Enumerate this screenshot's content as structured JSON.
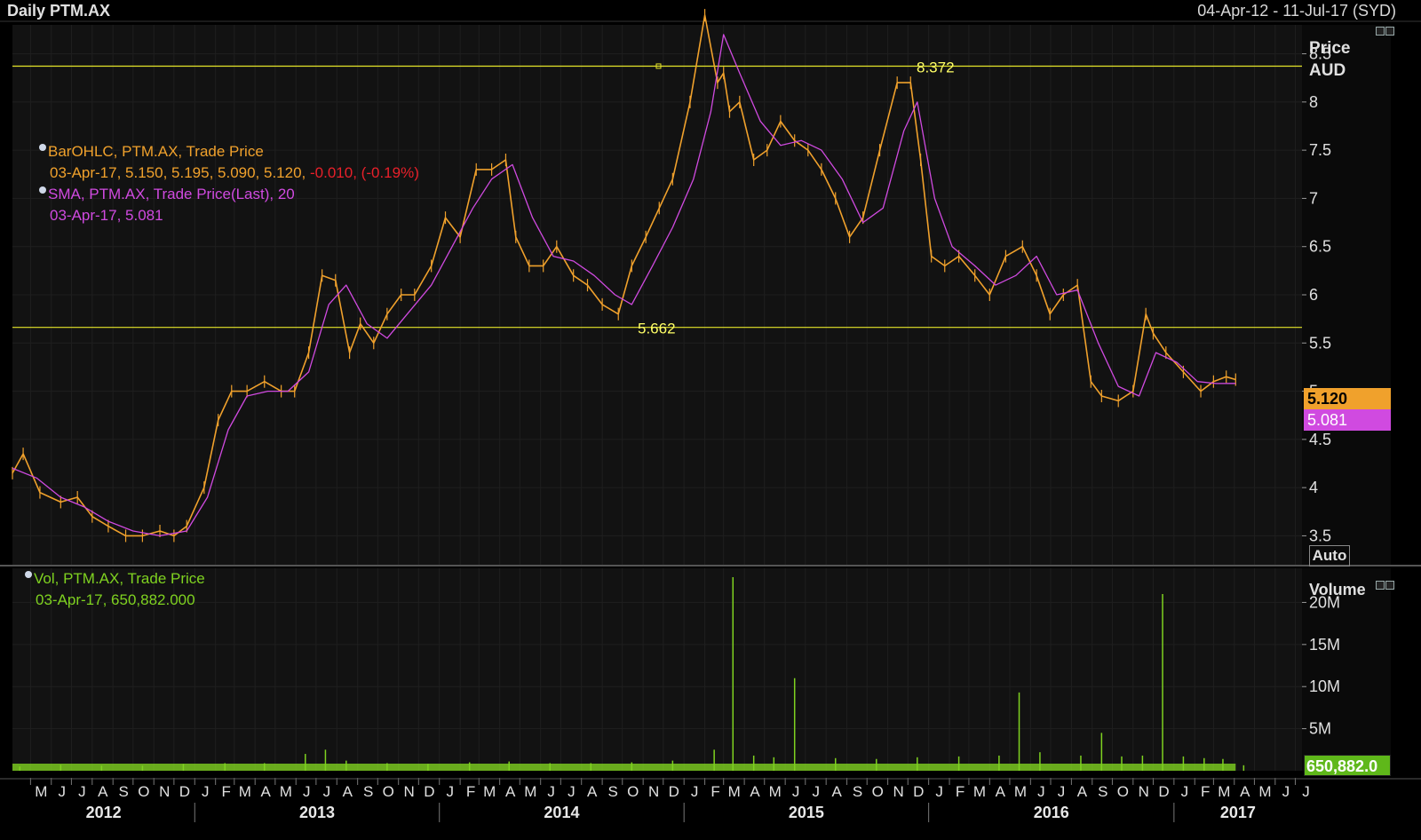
{
  "header": {
    "title": "Daily PTM.AX",
    "range": "04-Apr-12 - 11-Jul-17 (SYD)"
  },
  "price_panel": {
    "axis_title_1": "Price",
    "axis_title_2": "AUD",
    "auto_label": "Auto",
    "last_price_tag": "5.120",
    "sma_tag": "5.081",
    "legend_ohlc_title": "BarOHLC, PTM.AX, Trade Price",
    "legend_ohlc_date": "03-Apr-17, 5.150, 5.195, 5.090, 5.120,",
    "legend_ohlc_change": "-0.010, (-0.19%)",
    "legend_sma_title": "SMA, PTM.AX, Trade Price(Last),  20",
    "legend_sma_value": "03-Apr-17, 5.081"
  },
  "volume_panel": {
    "axis_title": "Volume",
    "last_volume_tag": "650,882.0",
    "legend_title": "Vol, PTM.AX, Trade Price",
    "legend_value": "03-Apr-17, 650,882.000"
  },
  "colors": {
    "price": "#f0a12c",
    "sma": "#d04ae0",
    "volume": "#7fd220",
    "hline": "#e6e62a",
    "grid": "#1f1f1f",
    "background": "#000000",
    "panel": "#121212"
  },
  "chart_data": [
    {
      "type": "line",
      "title": "Daily PTM.AX",
      "ylabel": "Price AUD",
      "ylim": [
        3.2,
        8.8
      ],
      "y_ticks": [
        "8.5",
        "8",
        "7.5",
        "7",
        "6.5",
        "6",
        "5.5",
        "5",
        "4.5",
        "4",
        "3.5"
      ],
      "x_month_labels": [
        "M",
        "J",
        "J",
        "A",
        "S",
        "O",
        "N",
        "D",
        "J",
        "F",
        "M",
        "A",
        "M",
        "J",
        "J",
        "A",
        "S",
        "O",
        "N",
        "D",
        "J",
        "F",
        "M",
        "A",
        "M",
        "J",
        "J",
        "A",
        "S",
        "O",
        "N",
        "D",
        "J",
        "F",
        "M",
        "A",
        "M",
        "J",
        "J",
        "A",
        "S",
        "O",
        "N",
        "D",
        "J",
        "F",
        "M",
        "A",
        "M",
        "J",
        "J",
        "A",
        "S",
        "O",
        "N",
        "D",
        "J",
        "F",
        "M",
        "A",
        "M",
        "J",
        "J"
      ],
      "x_year_labels": [
        "2012",
        "2013",
        "2014",
        "2015",
        "2016",
        "2017"
      ],
      "horizontal_lines": [
        {
          "value": 8.372,
          "label": "8.372"
        },
        {
          "value": 5.662,
          "label": "5.662"
        }
      ],
      "series": [
        {
          "name": "BarOHLC, PTM.AX, Trade Price",
          "x": [
            "2012-04-04",
            "2012-04-20",
            "2012-05-15",
            "2012-06-15",
            "2012-07-10",
            "2012-08-01",
            "2012-08-25",
            "2012-09-20",
            "2012-10-15",
            "2012-11-10",
            "2012-12-01",
            "2012-12-20",
            "2013-01-15",
            "2013-02-05",
            "2013-02-25",
            "2013-03-20",
            "2013-04-15",
            "2013-05-10",
            "2013-05-30",
            "2013-06-20",
            "2013-07-10",
            "2013-07-30",
            "2013-08-20",
            "2013-09-05",
            "2013-09-25",
            "2013-10-15",
            "2013-11-05",
            "2013-11-25",
            "2013-12-20",
            "2014-01-10",
            "2014-02-01",
            "2014-02-25",
            "2014-03-20",
            "2014-04-10",
            "2014-04-25",
            "2014-05-15",
            "2014-06-05",
            "2014-06-25",
            "2014-07-20",
            "2014-08-10",
            "2014-09-01",
            "2014-09-25",
            "2014-10-15",
            "2014-11-05",
            "2014-11-25",
            "2014-12-15",
            "2015-01-10",
            "2015-02-01",
            "2015-02-20",
            "2015-03-01",
            "2015-03-10",
            "2015-03-25",
            "2015-04-15",
            "2015-05-05",
            "2015-05-25",
            "2015-06-15",
            "2015-07-05",
            "2015-07-25",
            "2015-08-15",
            "2015-09-05",
            "2015-09-25",
            "2015-10-20",
            "2015-11-15",
            "2015-12-05",
            "2015-12-20",
            "2016-01-05",
            "2016-01-25",
            "2016-02-15",
            "2016-03-10",
            "2016-04-01",
            "2016-04-25",
            "2016-05-20",
            "2016-06-10",
            "2016-06-30",
            "2016-07-20",
            "2016-08-10",
            "2016-08-30",
            "2016-09-15",
            "2016-10-10",
            "2016-11-01",
            "2016-11-20",
            "2016-12-01",
            "2016-12-20",
            "2017-01-15",
            "2017-02-10",
            "2017-03-01",
            "2017-03-20",
            "2017-04-03"
          ],
          "values": [
            4.15,
            4.35,
            3.95,
            3.85,
            3.9,
            3.7,
            3.6,
            3.5,
            3.5,
            3.55,
            3.5,
            3.6,
            4.0,
            4.7,
            5.0,
            5.0,
            5.1,
            5.0,
            5.0,
            5.4,
            6.2,
            6.15,
            5.4,
            5.7,
            5.5,
            5.8,
            6.0,
            6.0,
            6.3,
            6.8,
            6.6,
            7.3,
            7.3,
            7.4,
            6.6,
            6.3,
            6.3,
            6.5,
            6.2,
            6.1,
            5.9,
            5.8,
            6.3,
            6.6,
            6.9,
            7.2,
            8.0,
            8.9,
            8.2,
            8.3,
            7.9,
            8.0,
            7.4,
            7.5,
            7.8,
            7.6,
            7.5,
            7.3,
            7.0,
            6.6,
            6.8,
            7.5,
            8.2,
            8.2,
            7.4,
            6.4,
            6.3,
            6.4,
            6.2,
            6.0,
            6.4,
            6.5,
            6.2,
            5.8,
            6.0,
            6.1,
            5.1,
            4.95,
            4.9,
            5.0,
            5.8,
            5.6,
            5.4,
            5.2,
            5.0,
            5.1,
            5.15,
            5.12
          ]
        },
        {
          "name": "SMA, PTM.AX, Trade Price(Last),  20",
          "x": [
            "2012-04-04",
            "2012-05-10",
            "2012-06-15",
            "2012-07-20",
            "2012-08-25",
            "2012-10-01",
            "2012-11-10",
            "2012-12-20",
            "2013-01-20",
            "2013-02-20",
            "2013-03-20",
            "2013-04-20",
            "2013-05-20",
            "2013-06-20",
            "2013-07-20",
            "2013-08-15",
            "2013-09-15",
            "2013-10-15",
            "2013-11-20",
            "2013-12-20",
            "2014-01-20",
            "2014-02-20",
            "2014-03-20",
            "2014-04-20",
            "2014-05-20",
            "2014-06-20",
            "2014-07-20",
            "2014-08-20",
            "2014-09-20",
            "2014-10-15",
            "2014-11-15",
            "2014-12-15",
            "2015-01-15",
            "2015-02-10",
            "2015-03-01",
            "2015-03-25",
            "2015-04-25",
            "2015-05-25",
            "2015-06-25",
            "2015-07-25",
            "2015-08-25",
            "2015-09-25",
            "2015-10-25",
            "2015-11-25",
            "2015-12-15",
            "2016-01-10",
            "2016-02-05",
            "2016-03-10",
            "2016-04-10",
            "2016-05-10",
            "2016-06-10",
            "2016-07-10",
            "2016-08-10",
            "2016-09-10",
            "2016-10-10",
            "2016-11-10",
            "2016-12-05",
            "2017-01-05",
            "2017-02-05",
            "2017-03-05",
            "2017-04-03"
          ],
          "values": [
            4.2,
            4.1,
            3.9,
            3.8,
            3.65,
            3.55,
            3.5,
            3.55,
            3.9,
            4.6,
            4.95,
            5.0,
            5.0,
            5.2,
            5.9,
            6.1,
            5.7,
            5.55,
            5.85,
            6.1,
            6.5,
            6.9,
            7.2,
            7.35,
            6.8,
            6.4,
            6.35,
            6.2,
            6.0,
            5.9,
            6.3,
            6.7,
            7.2,
            7.9,
            8.7,
            8.3,
            7.8,
            7.55,
            7.6,
            7.5,
            7.2,
            6.75,
            6.9,
            7.7,
            8.0,
            7.0,
            6.5,
            6.3,
            6.1,
            6.2,
            6.4,
            6.0,
            6.05,
            5.5,
            5.05,
            4.95,
            5.4,
            5.3,
            5.1,
            5.08,
            5.081
          ]
        }
      ]
    },
    {
      "type": "bar",
      "title": "",
      "ylabel": "Volume",
      "ylim": [
        0,
        23000000
      ],
      "y_ticks": [
        "20M",
        "15M",
        "10M",
        "5M"
      ],
      "series": [
        {
          "name": "Vol, PTM.AX, Trade Price",
          "x": [
            "2012-04",
            "2012-06",
            "2012-08",
            "2012-10",
            "2012-12",
            "2013-02",
            "2013-04",
            "2013-06",
            "2013-07",
            "2013-08",
            "2013-10",
            "2013-12",
            "2014-02",
            "2014-04",
            "2014-06",
            "2014-08",
            "2014-10",
            "2014-12",
            "2015-02",
            "2015-03",
            "2015-04",
            "2015-05",
            "2015-06",
            "2015-08",
            "2015-10",
            "2015-12",
            "2016-02",
            "2016-04",
            "2016-05",
            "2016-06",
            "2016-08",
            "2016-09",
            "2016-10",
            "2016-11",
            "2016-12",
            "2017-01",
            "2017-02",
            "2017-03",
            "2017-04"
          ],
          "values": [
            500000,
            700000,
            600000,
            600000,
            800000,
            900000,
            900000,
            2000000,
            2500000,
            1200000,
            900000,
            800000,
            1000000,
            1100000,
            900000,
            900000,
            1000000,
            1200000,
            2500000,
            23000000,
            1800000,
            1600000,
            11000000,
            1500000,
            1400000,
            1600000,
            1700000,
            1800000,
            9300000,
            2200000,
            1800000,
            4500000,
            1700000,
            1800000,
            21000000,
            1700000,
            1500000,
            1400000,
            650882
          ]
        }
      ]
    }
  ]
}
